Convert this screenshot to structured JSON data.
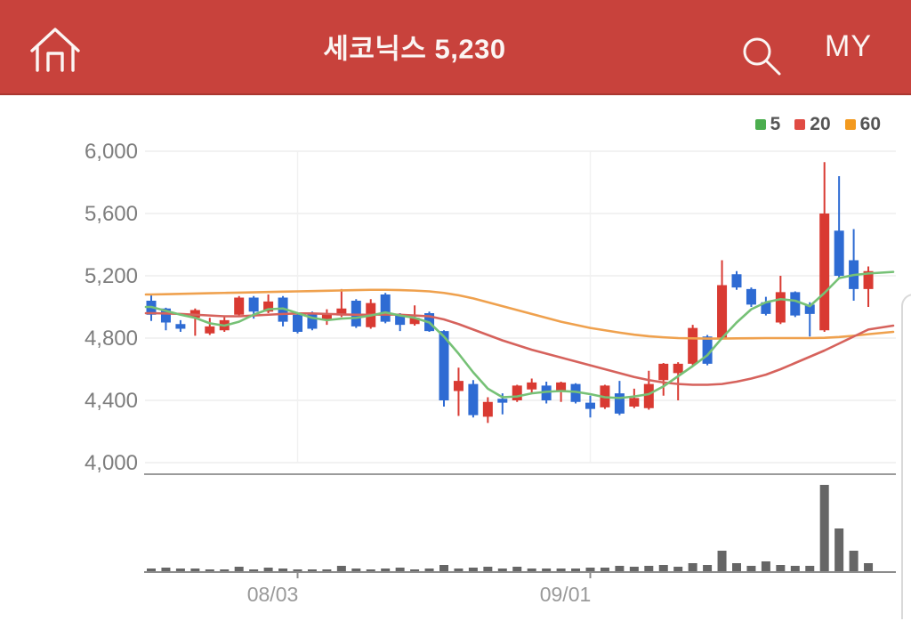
{
  "header": {
    "title": "세코닉스 5,230",
    "my_label": "MY",
    "icons": [
      "home-icon",
      "search-icon"
    ],
    "colors": {
      "background": "#c8423c",
      "text": "#fbf5f3"
    }
  },
  "legend": {
    "items": [
      {
        "label": "5",
        "color": "#4cae4f"
      },
      {
        "label": "20",
        "color": "#e04b43"
      },
      {
        "label": "60",
        "color": "#f39a1f"
      }
    ]
  },
  "chart_data": {
    "type": "candlestick",
    "stock_name": "세코닉스",
    "last_price": "5,230",
    "y_axis": {
      "tick_labels": [
        "6,000",
        "5,600",
        "5,200",
        "4,800",
        "4,400",
        "4,000"
      ],
      "tick_values": [
        6000,
        5600,
        5200,
        4800,
        4400,
        4000
      ],
      "units_per_step": 400
    },
    "x_axis": {
      "tick_labels": [
        "08/03",
        "09/01"
      ],
      "tick_candle_indices": [
        10,
        30
      ]
    },
    "colors": {
      "up": "#d93a32",
      "down": "#2e6bd3",
      "ma5": "#76c176",
      "ma20": "#d6625c",
      "ma60": "#efa14e",
      "volume": "#666666",
      "grid": "#ededed",
      "vgrid": "#f1f1f1",
      "axis_text": "#7d7d7d",
      "x_text": "#999999",
      "separator": "#9b9b9b",
      "baseline": "#8c8c8c"
    },
    "volume_scale": "relative (pane height = 100)",
    "candles": {
      "columns": [
        "open",
        "high",
        "low",
        "close",
        "volume_rel"
      ],
      "rows": [
        [
          5040,
          5080,
          4910,
          4950,
          4
        ],
        [
          4990,
          4995,
          4850,
          4900,
          5
        ],
        [
          4890,
          4915,
          4840,
          4860,
          4
        ],
        [
          4930,
          4990,
          4815,
          4980,
          4
        ],
        [
          4830,
          4930,
          4820,
          4875,
          3
        ],
        [
          4850,
          4940,
          4840,
          4915,
          3
        ],
        [
          4950,
          5070,
          4940,
          5060,
          6
        ],
        [
          5060,
          5070,
          4925,
          4970,
          3
        ],
        [
          4970,
          5080,
          4960,
          5035,
          5
        ],
        [
          5060,
          5070,
          4875,
          4905,
          4
        ],
        [
          4950,
          4960,
          4830,
          4840,
          3
        ],
        [
          4960,
          4970,
          4850,
          4860,
          3
        ],
        [
          4915,
          4985,
          4885,
          4955,
          3
        ],
        [
          4945,
          5115,
          4935,
          4990,
          7
        ],
        [
          5040,
          5050,
          4865,
          4875,
          4
        ],
        [
          4870,
          5050,
          4860,
          5025,
          3
        ],
        [
          5080,
          5090,
          4895,
          4905,
          4
        ],
        [
          4945,
          4960,
          4845,
          4885,
          5
        ],
        [
          4890,
          5010,
          4880,
          4930,
          3
        ],
        [
          4960,
          4970,
          4840,
          4845,
          4
        ],
        [
          4845,
          4850,
          4360,
          4400,
          8
        ],
        [
          4460,
          4610,
          4300,
          4525,
          4
        ],
        [
          4505,
          4530,
          4290,
          4305,
          5
        ],
        [
          4295,
          4420,
          4255,
          4390,
          6
        ],
        [
          4410,
          4445,
          4310,
          4385,
          4
        ],
        [
          4400,
          4500,
          4390,
          4495,
          6
        ],
        [
          4470,
          4540,
          4450,
          4515,
          4
        ],
        [
          4495,
          4520,
          4380,
          4400,
          4
        ],
        [
          4455,
          4520,
          4390,
          4515,
          4
        ],
        [
          4505,
          4510,
          4380,
          4390,
          4
        ],
        [
          4385,
          4430,
          4290,
          4345,
          5
        ],
        [
          4355,
          4500,
          4345,
          4495,
          5
        ],
        [
          4445,
          4525,
          4305,
          4315,
          7
        ],
        [
          4360,
          4475,
          4350,
          4415,
          6
        ],
        [
          4350,
          4590,
          4340,
          4505,
          7
        ],
        [
          4530,
          4640,
          4430,
          4635,
          8
        ],
        [
          4575,
          4645,
          4400,
          4635,
          6
        ],
        [
          4635,
          4885,
          4625,
          4865,
          10
        ],
        [
          4810,
          4820,
          4625,
          4635,
          8
        ],
        [
          4800,
          5300,
          4790,
          5140,
          24
        ],
        [
          5210,
          5230,
          5110,
          5125,
          10
        ],
        [
          5115,
          5125,
          5000,
          5015,
          7
        ],
        [
          5030,
          5065,
          4945,
          4955,
          12
        ],
        [
          4900,
          5200,
          4890,
          5095,
          8
        ],
        [
          5095,
          5100,
          4935,
          4945,
          7
        ],
        [
          5015,
          5030,
          4810,
          4955,
          7
        ],
        [
          4850,
          5930,
          4840,
          5600,
          98
        ],
        [
          5490,
          5840,
          5180,
          5200,
          49
        ],
        [
          5300,
          5500,
          5040,
          5115,
          24
        ],
        [
          5115,
          5260,
          5000,
          5230,
          10
        ]
      ]
    },
    "moving_averages": {
      "ma5": {
        "period_label": "5",
        "values": [
          5000,
          4975,
          4950,
          4930,
          4895,
          4880,
          4905,
          4950,
          4985,
          4990,
          4960,
          4930,
          4915,
          4925,
          4930,
          4945,
          4965,
          4945,
          4930,
          4900,
          4810,
          4700,
          4580,
          4475,
          4420,
          4425,
          4445,
          4455,
          4460,
          4455,
          4440,
          4420,
          4415,
          4425,
          4440,
          4490,
          4555,
          4620,
          4690,
          4800,
          4900,
          4985,
          5030,
          5050,
          5040,
          5005,
          5090,
          5185,
          5205,
          5215
        ],
        "extend_value": 5225
      },
      "ma20": {
        "period_label": "20",
        "values": [
          4960,
          4958,
          4955,
          4950,
          4945,
          4940,
          4940,
          4945,
          4950,
          4955,
          4958,
          4958,
          4955,
          4952,
          4950,
          4950,
          4952,
          4950,
          4945,
          4940,
          4920,
          4890,
          4855,
          4820,
          4785,
          4755,
          4725,
          4700,
          4675,
          4650,
          4625,
          4600,
          4575,
          4550,
          4530,
          4515,
          4505,
          4500,
          4500,
          4505,
          4520,
          4540,
          4565,
          4600,
          4640,
          4680,
          4720,
          4765,
          4810,
          4855
        ],
        "extend_value": 4880
      },
      "ma60": {
        "period_label": "60",
        "values": [
          5080,
          5082,
          5084,
          5086,
          5088,
          5090,
          5092,
          5094,
          5096,
          5098,
          5100,
          5102,
          5104,
          5106,
          5108,
          5110,
          5110,
          5108,
          5105,
          5100,
          5090,
          5075,
          5055,
          5030,
          5005,
          4980,
          4955,
          4930,
          4905,
          4885,
          4865,
          4850,
          4835,
          4822,
          4812,
          4805,
          4800,
          4798,
          4797,
          4797,
          4798,
          4799,
          4800,
          4800,
          4800,
          4800,
          4802,
          4807,
          4815,
          4825
        ],
        "extend_value": 4840
      }
    }
  }
}
